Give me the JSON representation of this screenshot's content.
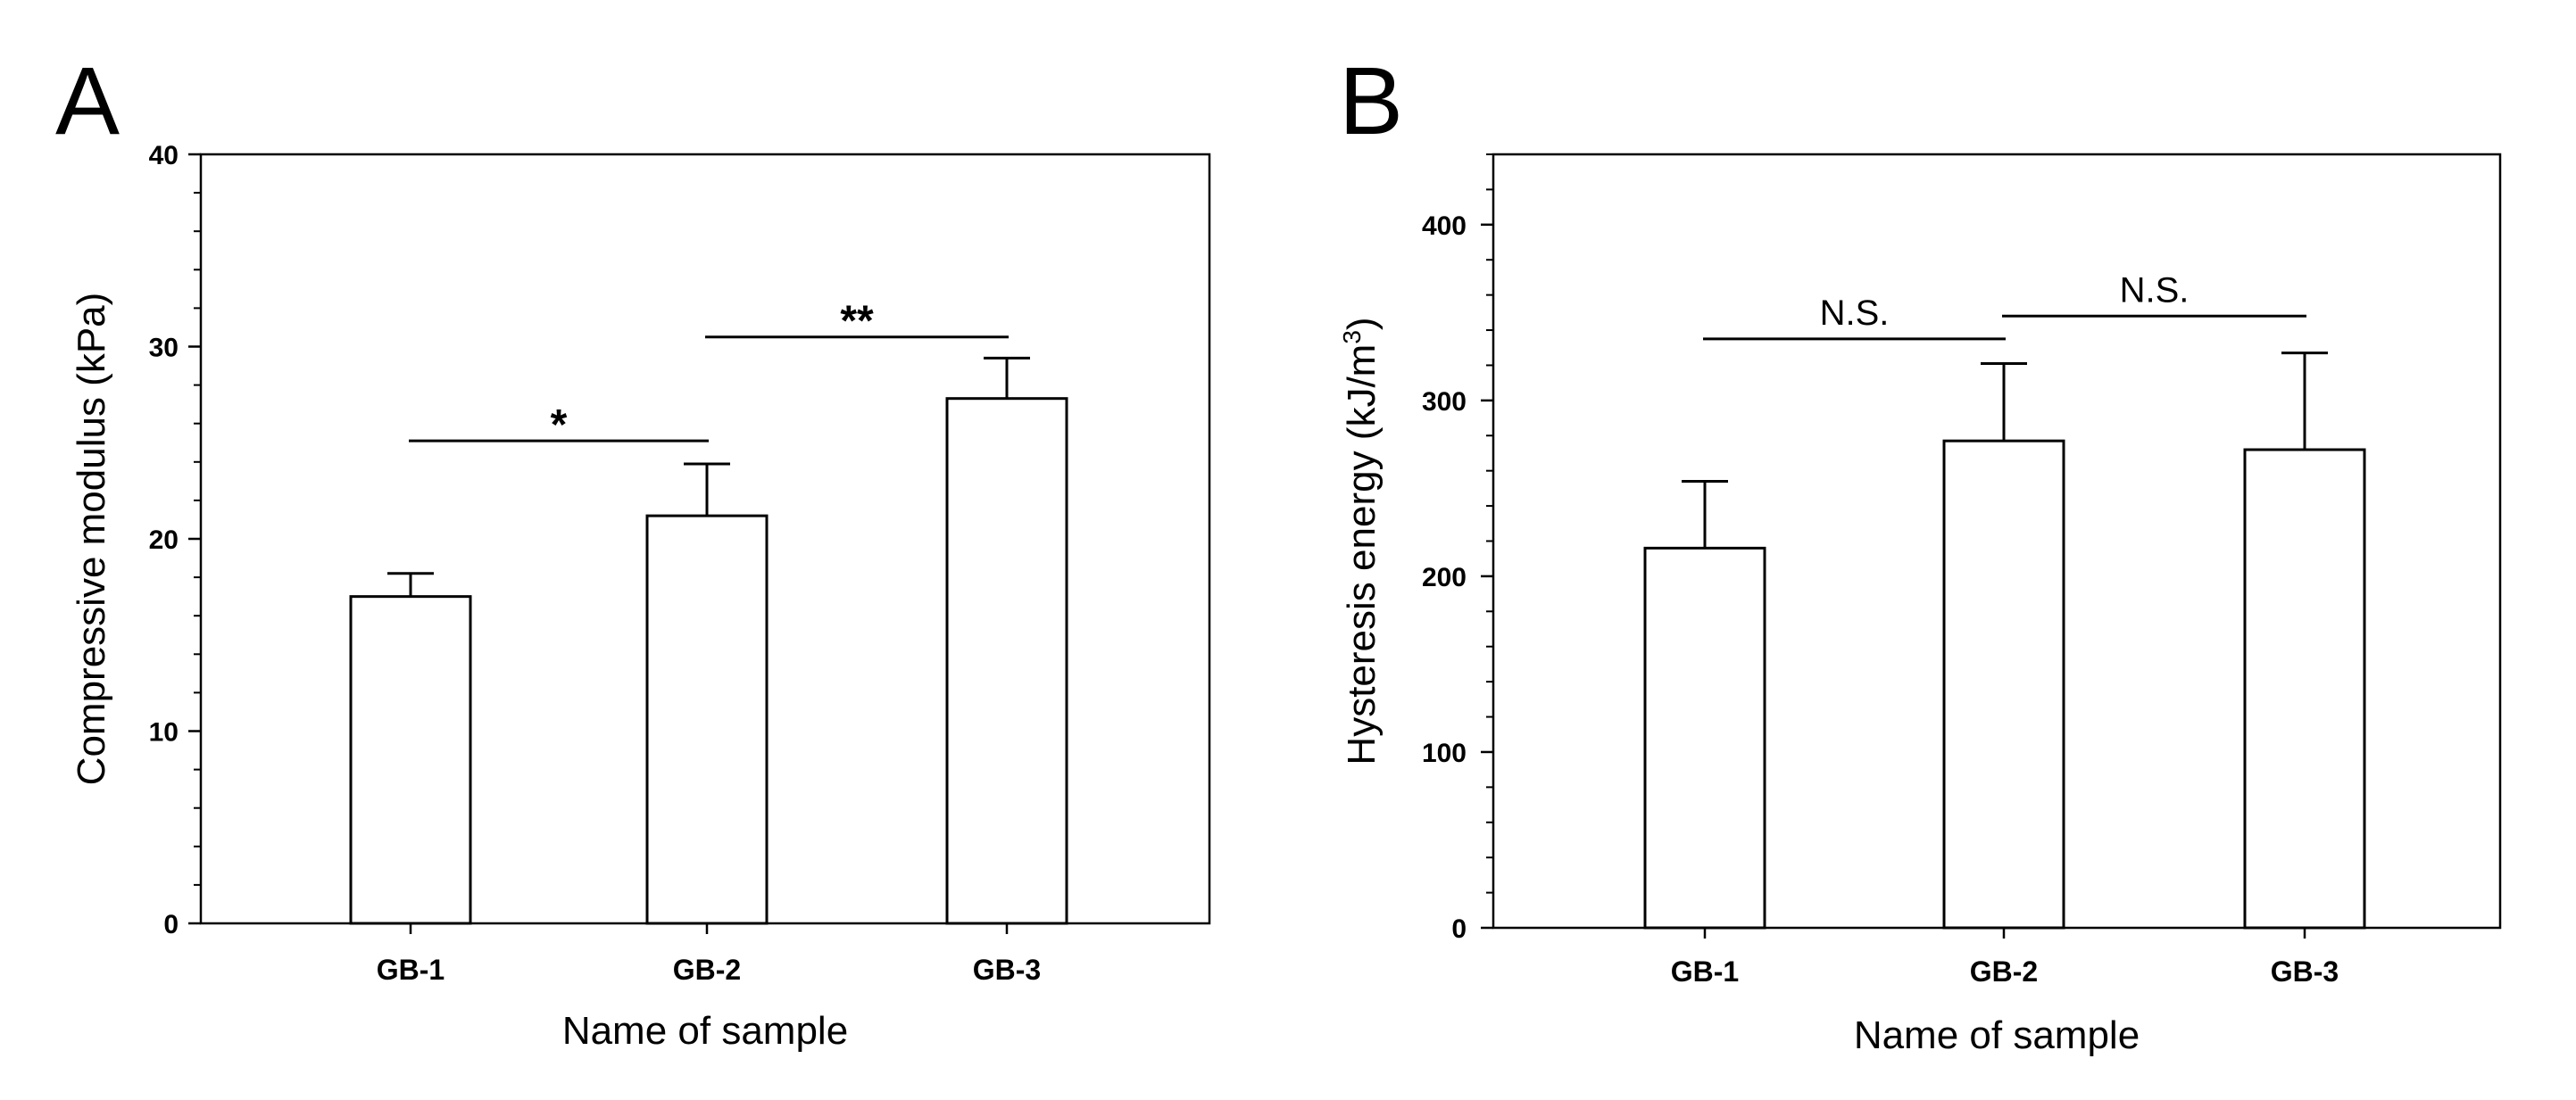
{
  "chart_data": [
    {
      "type": "bar",
      "panel_label": "A",
      "title": "",
      "xlabel": "Name of sample",
      "ylabel": "Compressive modulus (kPa)",
      "ylim": [
        0,
        40
      ],
      "yticks": [
        0,
        10,
        20,
        30,
        40
      ],
      "ytick_labels": [
        "0",
        "10",
        "20",
        "30",
        "40"
      ],
      "minor_tick_step": 2,
      "categories": [
        "GB-1",
        "GB-2",
        "GB-3"
      ],
      "values": [
        17.0,
        21.2,
        27.3
      ],
      "errors": [
        1.2,
        2.7,
        2.1
      ],
      "grid": false,
      "significance": [
        {
          "from": 0,
          "to": 1,
          "label": "*",
          "y": 25.1
        },
        {
          "from": 1,
          "to": 2,
          "label": "**",
          "y": 30.5
        }
      ]
    },
    {
      "type": "bar",
      "panel_label": "B",
      "title": "",
      "xlabel": "Name of sample",
      "ylabel": "Hysteresis energy (kJ/m",
      "ylabel_superscript": "3",
      "ylabel_suffix": ")",
      "ylim": [
        0,
        440
      ],
      "yticks": [
        0,
        100,
        200,
        300,
        400
      ],
      "ytick_labels": [
        "0",
        "100",
        "200",
        "300",
        "400"
      ],
      "minor_tick_step": 20,
      "categories": [
        "GB-1",
        "GB-2",
        "GB-3"
      ],
      "values": [
        216,
        277,
        272
      ],
      "errors": [
        38,
        44,
        55
      ],
      "grid": false,
      "significance": [
        {
          "from": 0,
          "to": 1,
          "label": "N.S.",
          "y": 335
        },
        {
          "from": 1,
          "to": 2,
          "label": "N.S.",
          "y": 348
        }
      ]
    }
  ]
}
